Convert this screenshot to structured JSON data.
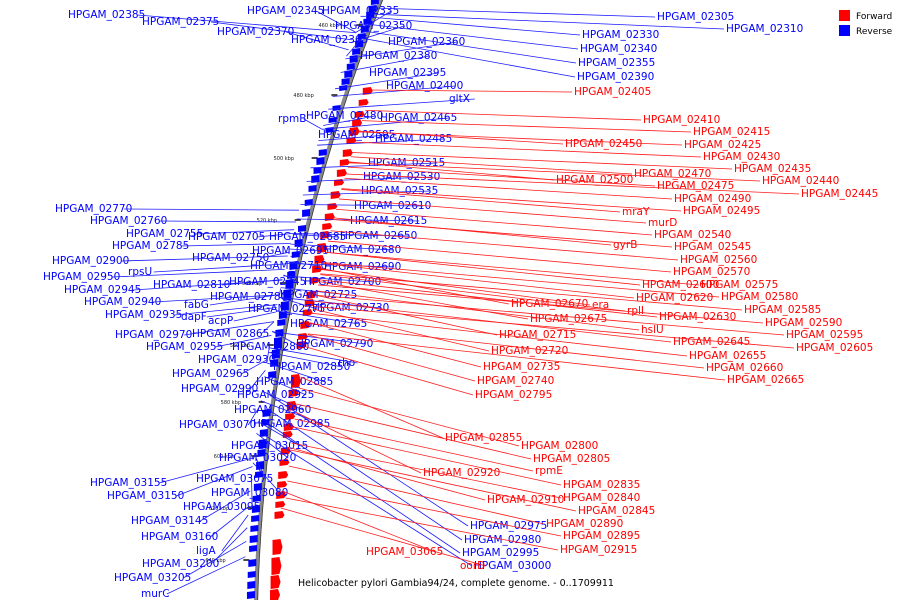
{
  "caption": "Helicobacter pylori Gambia94/24, complete genome. - 0..1709911",
  "legend": [
    {
      "label": "Forward",
      "color": "#ff0000"
    },
    {
      "label": "Reverse",
      "color": "#0000ff"
    }
  ],
  "colors": {
    "forward": "#ff0000",
    "reverse": "#0000ff",
    "forward_line": "#ff1a1a",
    "reverse_line": "#1a1aff"
  },
  "ticks": [
    "460 kbp",
    "480 kbp",
    "500 kbp",
    "520 kbp",
    "540 kbp",
    "560 kbp",
    "580 kbp",
    "600 kbp",
    "620 kbp",
    "640 kbp"
  ],
  "reverse_genes": [
    "HPGAM_02385",
    "HPGAM_02375",
    "HPGAM_02370",
    "HPGAM_02345",
    "HPGAM_02335",
    "HPGAM_02350",
    "HPGAM_02365",
    "HPGAM_02360",
    "HPGAM_02380",
    "HPGAM_02395",
    "HPGAM_02400",
    "gltX",
    "HPGAM_02480",
    "rpmB",
    "HPGAM_02465",
    "HPGAM_02505",
    "HPGAM_02485",
    "HPGAM_02515",
    "HPGAM_02530",
    "HPGAM_02535",
    "HPGAM_02610",
    "HPGAM_02615",
    "HPGAM_02650",
    "HPGAM_02770",
    "HPGAM_02760",
    "HPGAM_02755",
    "HPGAM_02705",
    "HPGAM_02685",
    "HPGAM_02785",
    "HPGAM_02695",
    "HPGAM_02680",
    "HPGAM_02750",
    "HPGAM_02900",
    "HPGAM_02710",
    "HPGAM_02690",
    "rpsU",
    "HPGAM_02950",
    "HPGAM_02745",
    "HPGAM_02700",
    "HPGAM_02810",
    "HPGAM_02945",
    "fabG",
    "HPGAM_02780",
    "HPGAM_02725",
    "HPGAM_02940",
    "HPGAM_02775",
    "HPGAM_02730",
    "HPGAM_02935",
    "dapF",
    "acpP",
    "HPGAM_02765",
    "HPGAM_02970",
    "HPGAM_02865",
    "HPGAM_02790",
    "HPGAM_02955",
    "HPGAM_02860",
    "HPGAM_02930",
    "rho",
    "HPGAM_02850",
    "HPGAM_02965",
    "HPGAM_02885",
    "HPGAM_02990",
    "HPGAM_02925",
    "HPGAM_02960",
    "HPGAM_03070",
    "HPGAM_02985",
    "HPGAM_03015",
    "HPGAM_03020",
    "HPGAM_03075",
    "HPGAM_03155",
    "HPGAM_03080",
    "HPGAM_03150",
    "HPGAM_03095",
    "HPGAM_03145",
    "HPGAM_03160",
    "ligA",
    "HPGAM_03200",
    "HPGAM_03205",
    "murC",
    "HPGAM_02305",
    "HPGAM_02310",
    "HPGAM_02330",
    "HPGAM_02340",
    "HPGAM_02355",
    "HPGAM_02390",
    "HPGAM_02975",
    "HPGAM_02980",
    "HPGAM_02995",
    "HPGAM_03000"
  ],
  "forward_genes": [
    "HPGAM_02405",
    "HPGAM_02410",
    "HPGAM_02415",
    "HPGAM_02450",
    "HPGAM_02425",
    "HPGAM_02430",
    "HPGAM_02435",
    "HPGAM_02470",
    "HPGAM_02500",
    "HPGAM_02440",
    "HPGAM_02475",
    "HPGAM_02445",
    "HPGAM_02490",
    "HPGAM_02495",
    "mraY",
    "murD",
    "HPGAM_02540",
    "gyrB",
    "HPGAM_02545",
    "HPGAM_02560",
    "HPGAM_02570",
    "HPGAM_02575",
    "HPGAM_02600",
    "HPGAM_02580",
    "HPGAM_02620",
    "HPGAM_02670",
    "era",
    "rplI",
    "HPGAM_02585",
    "HPGAM_02675",
    "HPGAM_02630",
    "HPGAM_02590",
    "hslU",
    "HPGAM_02595",
    "HPGAM_02715",
    "HPGAM_02645",
    "HPGAM_02605",
    "HPGAM_02720",
    "HPGAM_02655",
    "HPGAM_02735",
    "HPGAM_02660",
    "HPGAM_02740",
    "HPGAM_02665",
    "HPGAM_02795",
    "HPGAM_02855",
    "HPGAM_02800",
    "HPGAM_02805",
    "rpmE",
    "HPGAM_02920",
    "HPGAM_02835",
    "HPGAM_02840",
    "HPGAM_02910",
    "HPGAM_02845",
    "HPGAM_02890",
    "HPGAM_02895",
    "HPGAM_02915",
    "HPGAM_03065",
    "oorD"
  ]
}
